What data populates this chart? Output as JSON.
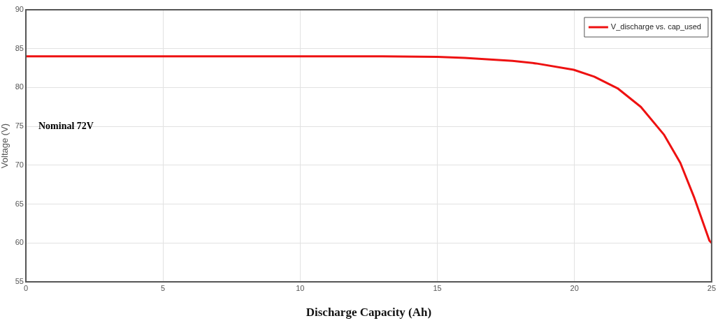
{
  "chart_data": {
    "type": "line",
    "xlabel": "Discharge Capacity (Ah)",
    "ylabel": "Voltage (V)",
    "annotations": [
      "Nominal 72V"
    ],
    "xlim": [
      0,
      25
    ],
    "xticks": [
      0,
      5,
      10,
      15,
      20,
      25
    ],
    "ylim": [
      55,
      90
    ],
    "yticks": [
      55,
      60,
      65,
      70,
      75,
      80,
      85,
      90
    ],
    "grid": true,
    "legend": "top right",
    "marker": "none",
    "line_style": "solid",
    "series": [
      {
        "name": "V_discharge vs. cap_used",
        "color": "#ee1111",
        "x": [
          0,
          5,
          10,
          13,
          15,
          16,
          17.74,
          18.6,
          19.97,
          20.72,
          21.57,
          22.42,
          23.27,
          23.86,
          24.37,
          24.92,
          25
        ],
        "values": [
          84,
          84,
          84,
          84,
          83.95,
          83.8,
          83.42,
          83.1,
          82.28,
          81.4,
          79.9,
          77.5,
          73.9,
          70.3,
          65.8,
          60.3,
          60
        ]
      }
    ]
  }
}
